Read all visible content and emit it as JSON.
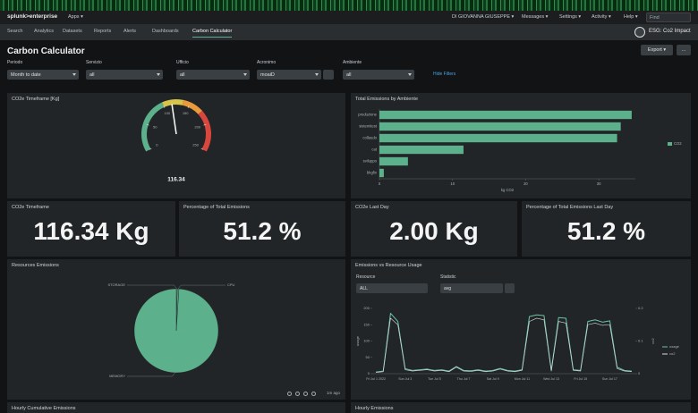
{
  "topbar": {
    "logo": "splunk>enterprise",
    "apps": "Apps ▾",
    "menu": [
      "DI GIOVANNA GIUSEPPE ▾",
      "Messages ▾",
      "Settings ▾",
      "Activity ▾",
      "Help ▾"
    ],
    "search": "Find"
  },
  "nav": {
    "items": [
      "Search",
      "Analytics",
      "Datasets",
      "Reports",
      "Alerts",
      "Dashboards",
      "Carbon Calculator"
    ],
    "active": 6,
    "app": "ESG: Co2 Impact"
  },
  "dashboard": {
    "title": "Carbon Calculator",
    "buttons": [
      "Export ▾",
      "..."
    ],
    "filters": [
      {
        "label": "Periodo",
        "value": "Month to date"
      },
      {
        "label": "Servizio",
        "value": "all"
      },
      {
        "label": "Ufficio",
        "value": "all"
      },
      {
        "label": "Acronimo",
        "value": "moaiD"
      },
      {
        "label": "Ambiente",
        "value": "all"
      }
    ],
    "hide_filters": "Hide Filters"
  },
  "panels": [
    {
      "title": "CO2e Timeframe [Kg]",
      "chart_data": {
        "type": "gauge",
        "value": 116.34,
        "range": [
          0,
          250
        ],
        "ticks": [
          0,
          50,
          100,
          150,
          200,
          250
        ]
      }
    },
    {
      "title": "Total Emissions by Ambiente",
      "chart_data": {
        "type": "hbar",
        "categories": [
          "produzione",
          "sistemitest",
          "collaudo",
          "cat",
          "sviluppo",
          "bkgfix"
        ],
        "series": [
          {
            "name": "CO2",
            "color": "#5cb08c",
            "values": [
              34.5,
              33,
              32.5,
              11.5,
              3.9,
              0.6
            ]
          }
        ],
        "xlim": [
          0,
          35
        ],
        "xticks": [
          0,
          10,
          20,
          30
        ],
        "xlabel": "kg CO2",
        "legend": "right"
      }
    },
    {
      "title": "CO2e Timeframe",
      "value": "116.34 Kg"
    },
    {
      "title": "Percentage of Total Emissions",
      "value": "51.2 %"
    },
    {
      "title": "CO2e Last Day",
      "value": "2.00 Kg"
    },
    {
      "title": "Percentage of Total Emissions Last Day",
      "value": "51.2 %"
    },
    {
      "title": "Resources Emissions",
      "chart_data": {
        "type": "pie",
        "categories": [
          "STORAGE",
          "CPU",
          "MEMORY"
        ],
        "values": [
          0.4,
          0.6,
          99
        ],
        "color": "#5cb08c"
      },
      "footer": "1m ago"
    },
    {
      "title": "Emissions vs Resource Usage",
      "inputs": [
        {
          "label": "Resource",
          "value": "ALL"
        },
        {
          "label": "Statistic",
          "value": "avg"
        }
      ],
      "chart_data": {
        "type": "line",
        "categories": [
          "Fri Jul 1 2022",
          null,
          null,
          null,
          "Sun Jul 3",
          null,
          null,
          null,
          "Tue Jul 5",
          null,
          null,
          null,
          "Thu Jul 7",
          null,
          null,
          null,
          "Sat Jul 9",
          null,
          null,
          null,
          "Mon Jul 11",
          null,
          null,
          null,
          "Wed Jul 13",
          null,
          null,
          null,
          "Fri Jul 15",
          null,
          null,
          null,
          "Sun Jul 17",
          null,
          null,
          null
        ],
        "series": [
          {
            "name": "usage",
            "color": "#6cc4a4",
            "values": [
              5,
              8,
              185,
              160,
              15,
              10,
              12,
              14,
              10,
              12,
              8,
              22,
              10,
              9,
              12,
              8,
              10,
              16,
              10,
              8,
              12,
              175,
              180,
              178,
              10,
              172,
              170,
              12,
              10,
              160,
              165,
              158,
              162,
              20,
              10,
              8
            ]
          },
          {
            "name": "co2",
            "color": "#d8dde0",
            "axis": "y2",
            "values": [
              0.004,
              0.006,
              0.17,
              0.15,
              0.012,
              0.008,
              0.01,
              0.012,
              0.008,
              0.01,
              0.006,
              0.02,
              0.008,
              0.007,
              0.01,
              0.006,
              0.008,
              0.014,
              0.008,
              0.006,
              0.01,
              0.16,
              0.17,
              0.165,
              0.008,
              0.16,
              0.155,
              0.01,
              0.008,
              0.15,
              0.155,
              0.148,
              0.15,
              0.016,
              0.008,
              0.006
            ]
          }
        ],
        "ylim": [
          0,
          200
        ],
        "yticks": [
          0,
          50,
          100,
          150,
          200
        ],
        "ylabel": "usage",
        "y2lim": [
          0,
          0.2
        ],
        "y2ticks": [
          0,
          0.1,
          0.2
        ],
        "y2label": "co2",
        "legend": "right"
      }
    },
    {
      "title": "Hourly Cumulative Emissions"
    },
    {
      "title": "Hourly Emissions"
    }
  ]
}
